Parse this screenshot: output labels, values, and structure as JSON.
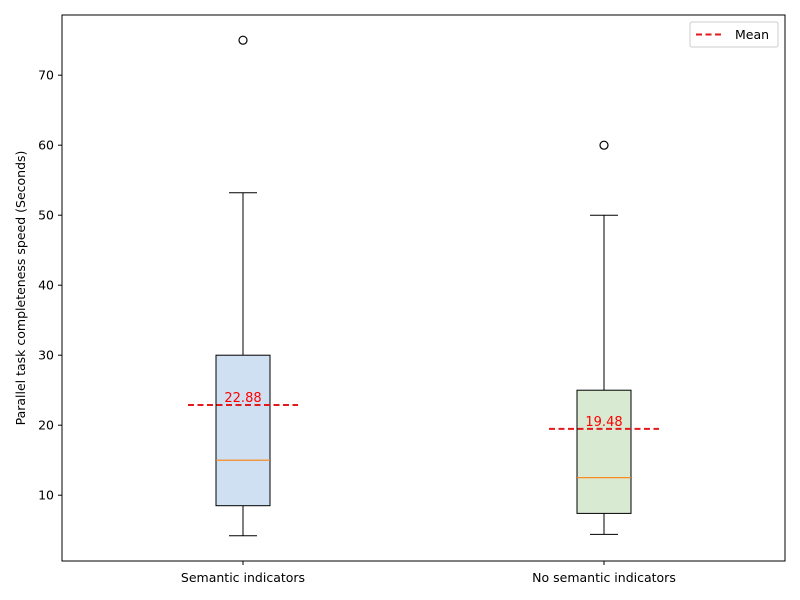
{
  "chart_data": {
    "type": "box",
    "title": "",
    "xlabel": "",
    "ylabel": "Parallel task completeness speed (Seconds)",
    "ylim": [
      0.6,
      78.6
    ],
    "yticks": [
      10,
      20,
      30,
      40,
      50,
      60,
      70
    ],
    "grid": false,
    "legend": {
      "position": "top-right",
      "entries": [
        {
          "label": "Mean",
          "style": "dashed",
          "color": "#e31a1c"
        }
      ]
    },
    "categories": [
      "Semantic indicators",
      "No semantic indicators"
    ],
    "series": [
      {
        "category": "Semantic indicators",
        "whisker_low": 4.2,
        "q1": 8.5,
        "median": 15.0,
        "q3": 30.0,
        "whisker_high": 53.2,
        "outliers": [
          75.0
        ],
        "mean": 22.88,
        "mean_label": "22.88",
        "fill": "#cfe0f3"
      },
      {
        "category": "No semantic indicators",
        "whisker_low": 4.4,
        "q1": 7.4,
        "median": 12.5,
        "q3": 25.0,
        "whisker_high": 50.0,
        "outliers": [
          60.0
        ],
        "mean": 19.48,
        "mean_label": "19.48",
        "fill": "#d9ead3"
      }
    ],
    "colors": {
      "median": "#ff7f0e",
      "mean": "#e31a1c",
      "mean_text": "#ff0000",
      "box_edge": "#000000"
    }
  }
}
